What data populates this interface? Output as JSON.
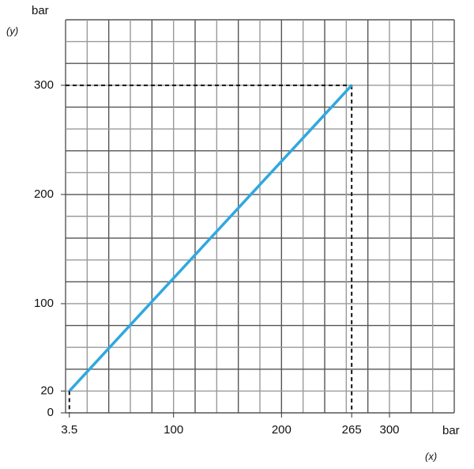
{
  "chart_data": {
    "type": "line",
    "x": [
      3.5,
      265
    ],
    "values": [
      20,
      300
    ],
    "color": "#2fa8e0",
    "xlim": [
      0,
      360
    ],
    "ylim": [
      0,
      360
    ],
    "xticks": [
      3.5,
      100,
      200,
      265,
      300
    ],
    "yticks": [
      0,
      20,
      100,
      200,
      300
    ],
    "x_unit": "bar",
    "y_unit": "bar",
    "xlabel": "(x)",
    "ylabel": "(y)",
    "grid": true
  }
}
